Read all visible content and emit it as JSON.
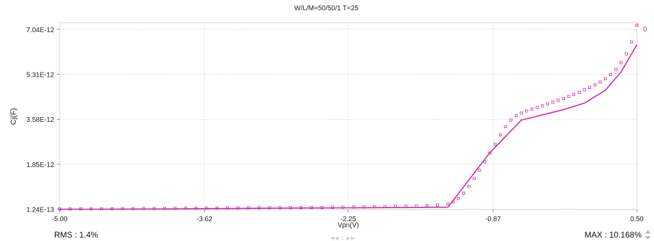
{
  "chart_data": {
    "type": "line",
    "title": "W/L/M=50/50/1   T=25",
    "xlabel": "Vpn(V)",
    "ylabel": "Cj(F)",
    "xlim": [
      -5.0,
      0.5
    ],
    "ylim": [
      1.1e-13,
      7.3e-12
    ],
    "x_ticks": [
      {
        "value": -5.0,
        "label": "-5.00"
      },
      {
        "value": -3.62,
        "label": "-3.62"
      },
      {
        "value": -2.25,
        "label": "-2.25"
      },
      {
        "value": -0.87,
        "label": "-0.87"
      },
      {
        "value": 0.5,
        "label": "0.50"
      }
    ],
    "y_ticks": [
      {
        "value": 1.24e-13,
        "label": "1.24E-13"
      },
      {
        "value": 1.85e-12,
        "label": "1.85E-12"
      },
      {
        "value": 3.58e-12,
        "label": "3.58E-12"
      },
      {
        "value": 5.31e-12,
        "label": "5.31E-12"
      },
      {
        "value": 7.04e-12,
        "label": "7.04E-12"
      }
    ],
    "grid": true,
    "legend": [
      "0"
    ],
    "series": [
      {
        "kind": "line",
        "color": "#cc2aa6",
        "x": [
          -5.0,
          -4.0,
          -3.0,
          -2.0,
          -1.3,
          -0.9,
          -0.6,
          -0.4,
          -0.2,
          0.0,
          0.2,
          0.35,
          0.5
        ],
        "y": [
          1.2e-13,
          1.3e-13,
          1.6e-13,
          1.8e-13,
          2e-13,
          2.3e-12,
          3.55e-12,
          3.75e-12,
          3.95e-12,
          4.2e-12,
          4.7e-12,
          5.4e-12,
          6.45e-12
        ]
      },
      {
        "kind": "markers",
        "color": "#cc2aa6",
        "x": [
          -5.0,
          -4.9,
          -4.8,
          -4.7,
          -4.6,
          -4.5,
          -4.4,
          -4.3,
          -4.2,
          -4.1,
          -4.0,
          -3.9,
          -3.8,
          -3.7,
          -3.6,
          -3.5,
          -3.4,
          -3.3,
          -3.2,
          -3.1,
          -3.0,
          -2.9,
          -2.8,
          -2.7,
          -2.6,
          -2.5,
          -2.4,
          -2.3,
          -2.2,
          -2.1,
          -2.0,
          -1.9,
          -1.8,
          -1.7,
          -1.6,
          -1.5,
          -1.4,
          -1.3,
          -1.25,
          -1.2,
          -1.15,
          -1.1,
          -1.05,
          -1.0,
          -0.95,
          -0.9,
          -0.85,
          -0.8,
          -0.75,
          -0.7,
          -0.65,
          -0.6,
          -0.55,
          -0.5,
          -0.45,
          -0.4,
          -0.35,
          -0.3,
          -0.25,
          -0.2,
          -0.15,
          -0.1,
          -0.05,
          0.0,
          0.05,
          0.1,
          0.15,
          0.2,
          0.25,
          0.3,
          0.35,
          0.4,
          0.45,
          0.5
        ],
        "y": [
          1.3e-13,
          1.3e-13,
          1.35e-13,
          1.35e-13,
          1.4e-13,
          1.4e-13,
          1.45e-13,
          1.45e-13,
          1.5e-13,
          1.5e-13,
          1.55e-13,
          1.55e-13,
          1.6e-13,
          1.6e-13,
          1.65e-13,
          1.65e-13,
          1.7e-13,
          1.7e-13,
          1.75e-13,
          1.75e-13,
          1.8e-13,
          1.8e-13,
          1.85e-13,
          1.85e-13,
          1.9e-13,
          1.9e-13,
          1.95e-13,
          2e-13,
          2.05e-13,
          2.1e-13,
          2.15e-13,
          2.2e-13,
          2.3e-13,
          2.4e-13,
          2.5e-13,
          2.65e-13,
          2.85e-13,
          3.2e-13,
          4e-13,
          5.3e-13,
          7.4e-13,
          1e-12,
          1.3e-12,
          1.62e-12,
          1.95e-12,
          2.28e-12,
          2.62e-12,
          2.98e-12,
          3.3e-12,
          3.55e-12,
          3.72e-12,
          3.82e-12,
          3.9e-12,
          3.97e-12,
          4.04e-12,
          4.1e-12,
          4.17e-12,
          4.24e-12,
          4.31e-12,
          4.38e-12,
          4.46e-12,
          4.54e-12,
          4.62e-12,
          4.71e-12,
          4.8e-12,
          4.9e-12,
          5.01e-12,
          5.14e-12,
          5.3e-12,
          5.5e-12,
          5.76e-12,
          6.1e-12,
          6.55e-12,
          7.2e-12
        ]
      }
    ]
  },
  "stats": {
    "rms": "RMS : 1.4%",
    "max": "MAX : 10.168%"
  },
  "pager": "◀◀ 1 ▶▶"
}
